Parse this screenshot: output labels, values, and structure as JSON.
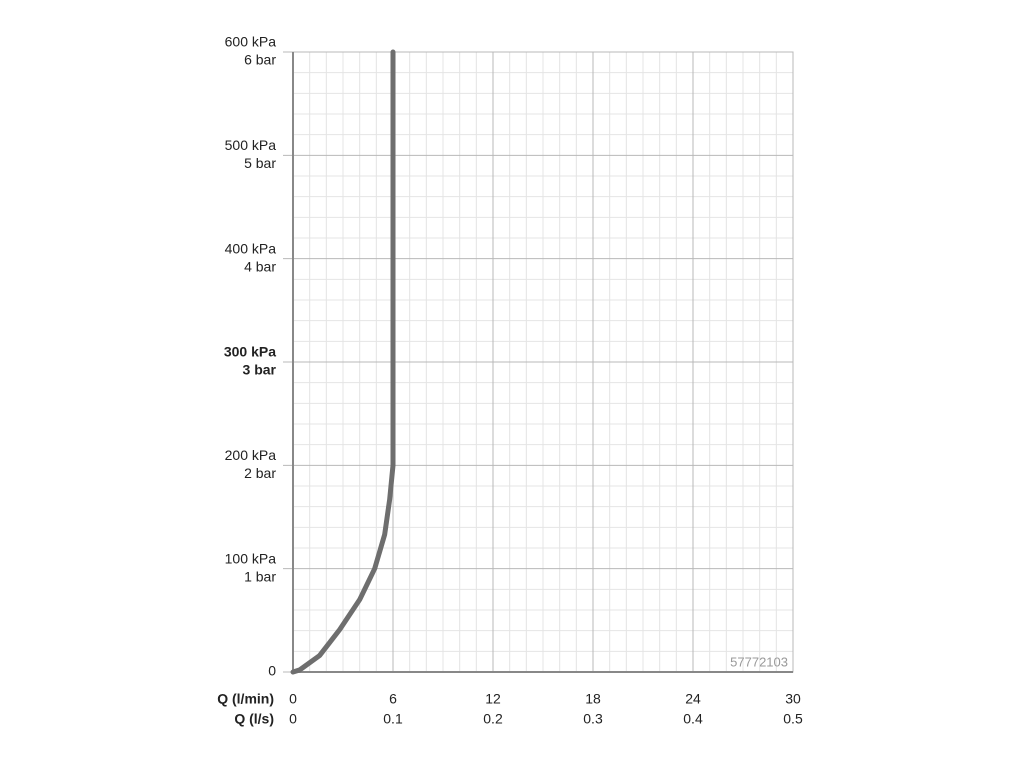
{
  "chart_data": {
    "type": "line",
    "xlabel": "Q (l/min)",
    "x2label": "Q (l/s)",
    "xlim": [
      0,
      30
    ],
    "xticks": [
      0,
      6,
      12,
      18,
      24,
      30
    ],
    "x2ticks": [
      0,
      {
        "value": 6,
        "label": "0.1"
      },
      {
        "value": 12,
        "label": "0.2"
      },
      {
        "value": 18,
        "label": "0.3"
      },
      {
        "value": 24,
        "label": "0.4"
      },
      {
        "value": 30,
        "label": "0.5"
      }
    ],
    "ylim": [
      0,
      600
    ],
    "yticks": [
      0,
      {
        "value": 100,
        "label": "100 kPa"
      },
      {
        "value": 200,
        "label": "200 kPa"
      },
      {
        "value": 300,
        "label": "300 kPa"
      },
      {
        "value": 400,
        "label": "400 kPa"
      },
      {
        "value": 500,
        "label": "500 kPa"
      },
      {
        "value": 600,
        "label": "600 kPa"
      }
    ],
    "y2ticks": [
      {
        "value": 100,
        "label": "1 bar"
      },
      {
        "value": 200,
        "label": "2 bar"
      },
      {
        "value": 300,
        "label": "3 bar"
      },
      {
        "value": 400,
        "label": "4 bar"
      },
      {
        "value": 500,
        "label": "5 bar"
      },
      {
        "value": 600,
        "label": "6 bar"
      }
    ],
    "bold_ytick": 300,
    "grid": true,
    "x": [
      0,
      0.4,
      1.6,
      2.8,
      4,
      4.9,
      5.5,
      5.8,
      6,
      6
    ],
    "series": [
      {
        "color": "#6e6e6e",
        "values": [
          0,
          2,
          16,
          41,
          70,
          100,
          133,
          167,
          200,
          600
        ]
      }
    ],
    "annotation": "57772103"
  }
}
